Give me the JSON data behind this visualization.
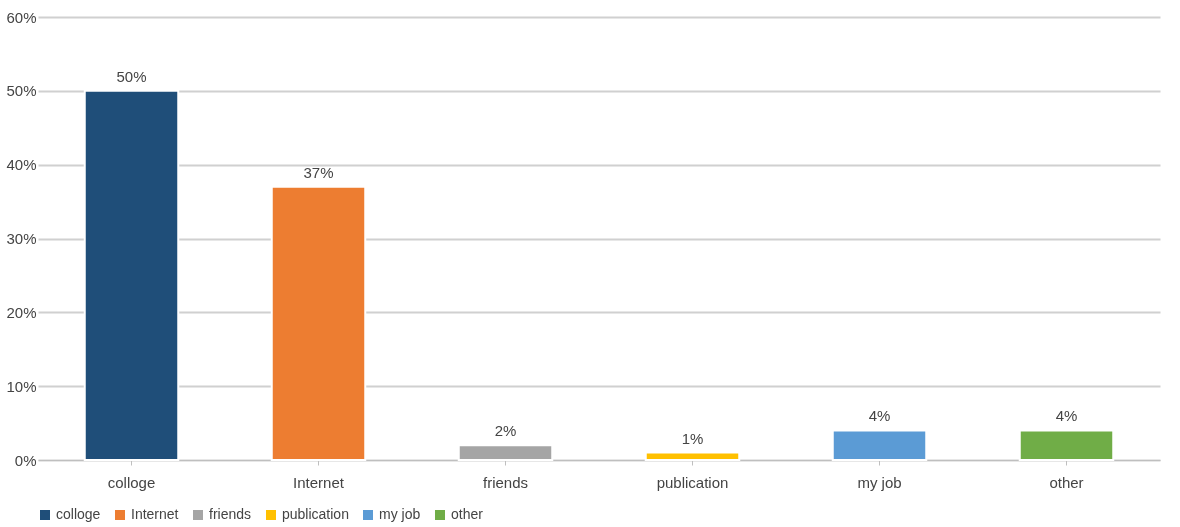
{
  "chart_data": {
    "type": "bar",
    "categories": [
      "colloge",
      "Internet",
      "friends",
      "publication",
      "my job",
      "other"
    ],
    "series": [
      {
        "name": "colloge",
        "color": "#1f4e79",
        "values": [
          50,
          null,
          null,
          null,
          null,
          null
        ],
        "value_labels": [
          "50%",
          null,
          null,
          null,
          null,
          null
        ]
      },
      {
        "name": "Internet",
        "color": "#ed7d31",
        "values": [
          null,
          37,
          null,
          null,
          null,
          null
        ],
        "value_labels": [
          null,
          "37%",
          null,
          null,
          null,
          null
        ]
      },
      {
        "name": "friends",
        "color": "#a5a5a5",
        "values": [
          null,
          null,
          2,
          null,
          null,
          null
        ],
        "value_labels": [
          null,
          null,
          "2%",
          null,
          null,
          null
        ]
      },
      {
        "name": "publication",
        "color": "#ffc000",
        "values": [
          null,
          null,
          null,
          1,
          null,
          null
        ],
        "value_labels": [
          null,
          null,
          null,
          "1%",
          null,
          null
        ]
      },
      {
        "name": "my job",
        "color": "#5b9bd5",
        "values": [
          null,
          null,
          null,
          null,
          4,
          null
        ],
        "value_labels": [
          null,
          null,
          null,
          null,
          "4%",
          null
        ]
      },
      {
        "name": "other",
        "color": "#70ad47",
        "values": [
          null,
          null,
          null,
          null,
          null,
          4
        ],
        "value_labels": [
          null,
          null,
          null,
          null,
          null,
          "4%"
        ]
      }
    ],
    "ylim": [
      0,
      60
    ],
    "yticks": [
      {
        "value": 0,
        "label": "0%"
      },
      {
        "value": 10,
        "label": "10%"
      },
      {
        "value": 20,
        "label": "20%"
      },
      {
        "value": 30,
        "label": "30%"
      },
      {
        "value": 40,
        "label": "40%"
      },
      {
        "value": 50,
        "label": "50%"
      },
      {
        "value": 60,
        "label": "60%"
      }
    ],
    "grid": "y",
    "legend": "bottom"
  }
}
